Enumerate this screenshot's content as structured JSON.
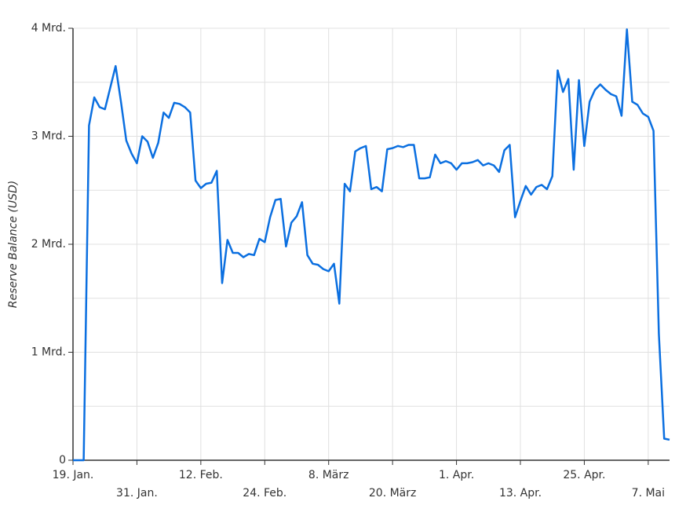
{
  "chart_data": {
    "type": "line",
    "y_label": "Reserve Balance (USD)",
    "categories": [
      "19. Jan.",
      null,
      null,
      null,
      null,
      null,
      null,
      null,
      null,
      null,
      null,
      null,
      "31. Jan.",
      null,
      null,
      null,
      null,
      null,
      null,
      null,
      null,
      null,
      null,
      null,
      "12. Feb.",
      null,
      null,
      null,
      null,
      null,
      null,
      null,
      null,
      null,
      null,
      null,
      "24. Feb.",
      null,
      null,
      null,
      null,
      null,
      null,
      null,
      null,
      null,
      null,
      null,
      "8. März",
      null,
      null,
      null,
      null,
      null,
      null,
      null,
      null,
      null,
      null,
      null,
      "20. März",
      null,
      null,
      null,
      null,
      null,
      null,
      null,
      null,
      null,
      null,
      null,
      "1. Apr.",
      null,
      null,
      null,
      null,
      null,
      null,
      null,
      null,
      null,
      null,
      null,
      "13. Apr.",
      null,
      null,
      null,
      null,
      null,
      null,
      null,
      null,
      null,
      null,
      null,
      "25. Apr.",
      null,
      null,
      null,
      null,
      null,
      null,
      null,
      null,
      null,
      null,
      null,
      "7. Mai",
      null,
      null,
      null,
      null
    ],
    "series": [
      {
        "color": "#0b6fe0",
        "values": [
          0,
          0,
          0,
          3100000000,
          3360000000,
          3270000000,
          3250000000,
          3450000000,
          3650000000,
          3320000000,
          2960000000,
          2840000000,
          2750000000,
          3000000000,
          2950000000,
          2800000000,
          2940000000,
          3220000000,
          3170000000,
          3310000000,
          3300000000,
          3270000000,
          3220000000,
          2590000000,
          2520000000,
          2560000000,
          2570000000,
          2680000000,
          1640000000,
          2040000000,
          1920000000,
          1920000000,
          1880000000,
          1910000000,
          1900000000,
          2050000000,
          2020000000,
          2250000000,
          2410000000,
          2420000000,
          1980000000,
          2200000000,
          2260000000,
          2390000000,
          1900000000,
          1820000000,
          1810000000,
          1770000000,
          1750000000,
          1820000000,
          1450000000,
          2560000000,
          2490000000,
          2860000000,
          2890000000,
          2910000000,
          2510000000,
          2530000000,
          2490000000,
          2880000000,
          2890000000,
          2910000000,
          2900000000,
          2920000000,
          2920000000,
          2610000000,
          2610000000,
          2620000000,
          2830000000,
          2750000000,
          2770000000,
          2750000000,
          2690000000,
          2750000000,
          2750000000,
          2760000000,
          2780000000,
          2730000000,
          2750000000,
          2730000000,
          2670000000,
          2870000000,
          2920000000,
          2250000000,
          2400000000,
          2540000000,
          2460000000,
          2530000000,
          2550000000,
          2510000000,
          2630000000,
          3610000000,
          3410000000,
          3530000000,
          2690000000,
          3520000000,
          2910000000,
          3320000000,
          3430000000,
          3480000000,
          3430000000,
          3390000000,
          3370000000,
          3190000000,
          3990000000,
          3320000000,
          3290000000,
          3210000000,
          3180000000,
          3050000000,
          1170000000,
          200000000,
          190000000
        ]
      }
    ],
    "ylim": [
      0,
      4000000000
    ],
    "yticks": [
      0,
      {
        "value": 1000000000,
        "label": "1 Mrd."
      },
      {
        "value": 2000000000,
        "label": "2 Mrd."
      },
      {
        "value": 3000000000,
        "label": "3 Mrd."
      },
      {
        "value": 4000000000,
        "label": "4 Mrd."
      }
    ],
    "minor_yticks": [
      500000000,
      1500000000,
      2500000000,
      3500000000
    ],
    "grid": true
  }
}
